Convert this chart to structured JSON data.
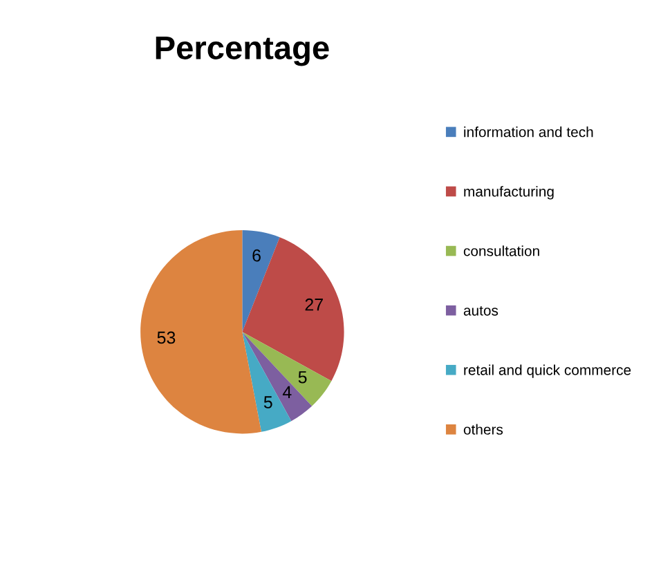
{
  "chart_data": {
    "type": "pie",
    "title": "Percentage",
    "categories": [
      "information and tech",
      "manufacturing",
      "consultation",
      "autos",
      "retail and quick commerce",
      "others"
    ],
    "values": [
      6,
      27,
      5,
      4,
      5,
      53
    ],
    "colors": [
      "#4a7ebb",
      "#be4b48",
      "#98b954",
      "#7d5fa0",
      "#46aac5",
      "#dd8440"
    ],
    "data_labels": true,
    "legend": "right"
  }
}
